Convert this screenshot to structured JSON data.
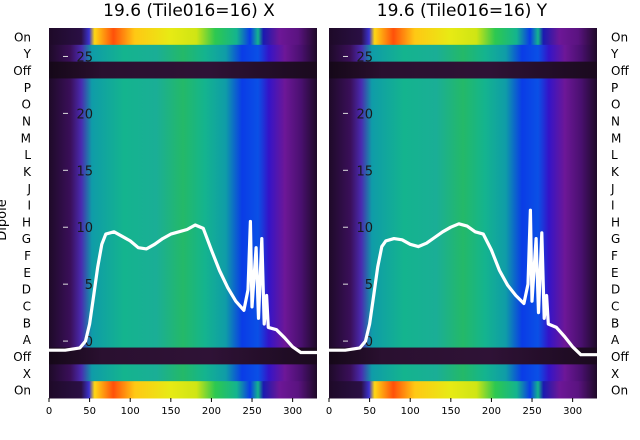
{
  "chart_data": [
    {
      "type": "heatmap",
      "title": "19.6 (Tile016=16) X",
      "ylabel": "Dipole",
      "row_labels": [
        "On",
        "Y",
        "Off",
        "P",
        "O",
        "N",
        "M",
        "L",
        "K",
        "J",
        "I",
        "H",
        "G",
        "F",
        "E",
        "D",
        "C",
        "B",
        "A",
        "Off",
        "X",
        "On"
      ],
      "x_ticks": [
        0,
        50,
        100,
        150,
        200,
        250,
        300
      ],
      "xlim": [
        0,
        330
      ],
      "overlay_y_ticks": [
        0,
        5,
        10,
        15,
        20,
        25
      ],
      "overlay_ylim": [
        -5,
        27.5
      ],
      "overlay_series": {
        "x": [
          0,
          20,
          38,
          45,
          50,
          55,
          60,
          65,
          70,
          80,
          90,
          100,
          110,
          120,
          130,
          140,
          150,
          160,
          170,
          180,
          190,
          200,
          210,
          220,
          230,
          240,
          245,
          248,
          250,
          255,
          258,
          262,
          265,
          268,
          270,
          280,
          290,
          300,
          310,
          320,
          330
        ],
        "y": [
          -0.8,
          -0.8,
          -0.6,
          0,
          1.5,
          4,
          6.5,
          8.5,
          9.4,
          9.6,
          9.2,
          8.8,
          8.2,
          8.1,
          8.5,
          9,
          9.4,
          9.6,
          9.8,
          10.2,
          9.9,
          8,
          6.2,
          4.7,
          3.5,
          2.7,
          4.5,
          10.5,
          3,
          8.2,
          2,
          9,
          1.5,
          4,
          1.2,
          1,
          0.3,
          -0.5,
          -1,
          -1,
          -1
        ]
      }
    },
    {
      "type": "heatmap",
      "title": "19.6 (Tile016=16) Y",
      "row_labels": [
        "On",
        "Y",
        "Off",
        "P",
        "O",
        "N",
        "M",
        "L",
        "K",
        "J",
        "I",
        "H",
        "G",
        "F",
        "E",
        "D",
        "C",
        "B",
        "A",
        "Off",
        "X",
        "On"
      ],
      "x_ticks": [
        0,
        50,
        100,
        150,
        200,
        250,
        300
      ],
      "xlim": [
        0,
        330
      ],
      "overlay_y_ticks": [
        0,
        5,
        10,
        15,
        20,
        25
      ],
      "overlay_ylim": [
        -5,
        27.5
      ],
      "overlay_series": {
        "x": [
          0,
          20,
          38,
          45,
          50,
          55,
          60,
          65,
          70,
          80,
          90,
          100,
          110,
          120,
          130,
          140,
          150,
          160,
          170,
          180,
          190,
          200,
          210,
          220,
          230,
          240,
          245,
          248,
          250,
          255,
          258,
          262,
          265,
          268,
          270,
          280,
          290,
          300,
          310,
          320,
          330
        ],
        "y": [
          -0.8,
          -0.8,
          -0.6,
          0,
          1.5,
          4,
          6.5,
          8.3,
          8.8,
          9,
          8.9,
          8.5,
          8.3,
          8.6,
          9.1,
          9.6,
          10,
          10.3,
          10.1,
          9.6,
          9.4,
          8,
          6.2,
          4.9,
          4,
          3.3,
          5,
          11.5,
          3.5,
          9,
          2.5,
          9.5,
          2,
          4,
          1.5,
          1.2,
          0.4,
          -0.5,
          -1.2,
          -1.2,
          -1.2
        ]
      }
    }
  ],
  "colors": {
    "spectrum": [
      "#1e0a28",
      "#3b0f5e",
      "#6d1797",
      "#8a1fb8",
      "#3414c8",
      "#0a3ce6",
      "#0f9ca8",
      "#14b48e",
      "#24b968",
      "#2dc850",
      "#6ee02a",
      "#d2e614",
      "#ffd814",
      "#ff9a0f",
      "#ff500a",
      "#ff2a05"
    ],
    "off_band": "#2a1030",
    "overlay_line": "#ffffff"
  }
}
